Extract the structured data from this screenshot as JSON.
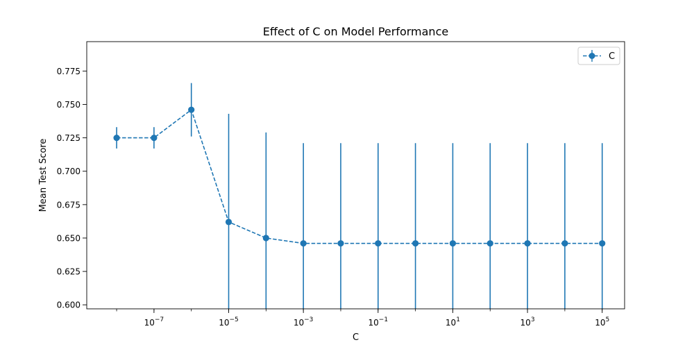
{
  "chart_data": {
    "type": "line",
    "title": "Effect of C on Model Performance",
    "xlabel": "C",
    "ylabel": "Mean Test Score",
    "xscale": "log",
    "xlim_exp": [
      -8.8,
      5.6
    ],
    "ylim": [
      0.597,
      0.797
    ],
    "grid": false,
    "legend": {
      "position": "top-right",
      "entries": [
        "C"
      ]
    },
    "color": "#1f77b4",
    "line_style": "dashed",
    "marker": "circle",
    "x_tick_labels": [
      {
        "base": "10",
        "exp": "−7",
        "value": -7
      },
      {
        "base": "10",
        "exp": "−5",
        "value": -5
      },
      {
        "base": "10",
        "exp": "−3",
        "value": -3
      },
      {
        "base": "10",
        "exp": "−1",
        "value": -1
      },
      {
        "base": "10",
        "exp": "1",
        "value": 1
      },
      {
        "base": "10",
        "exp": "3",
        "value": 3
      },
      {
        "base": "10",
        "exp": "5",
        "value": 5
      }
    ],
    "y_tick_labels": [
      "0.600",
      "0.625",
      "0.650",
      "0.675",
      "0.700",
      "0.725",
      "0.750",
      "0.775"
    ],
    "y_ticks": [
      0.6,
      0.625,
      0.65,
      0.675,
      0.7,
      0.725,
      0.75,
      0.775
    ],
    "series": [
      {
        "name": "C",
        "x": [
          1e-08,
          1e-07,
          1e-06,
          1e-05,
          0.0001,
          0.001,
          0.01,
          0.1,
          1,
          10,
          100,
          1000,
          10000,
          100000
        ],
        "values": [
          0.725,
          0.725,
          0.746,
          0.662,
          0.65,
          0.646,
          0.646,
          0.646,
          0.646,
          0.646,
          0.646,
          0.646,
          0.646,
          0.646
        ],
        "error": [
          0.008,
          0.008,
          0.02,
          0.081,
          0.079,
          0.075,
          0.075,
          0.075,
          0.075,
          0.075,
          0.075,
          0.075,
          0.075,
          0.075
        ]
      }
    ]
  }
}
